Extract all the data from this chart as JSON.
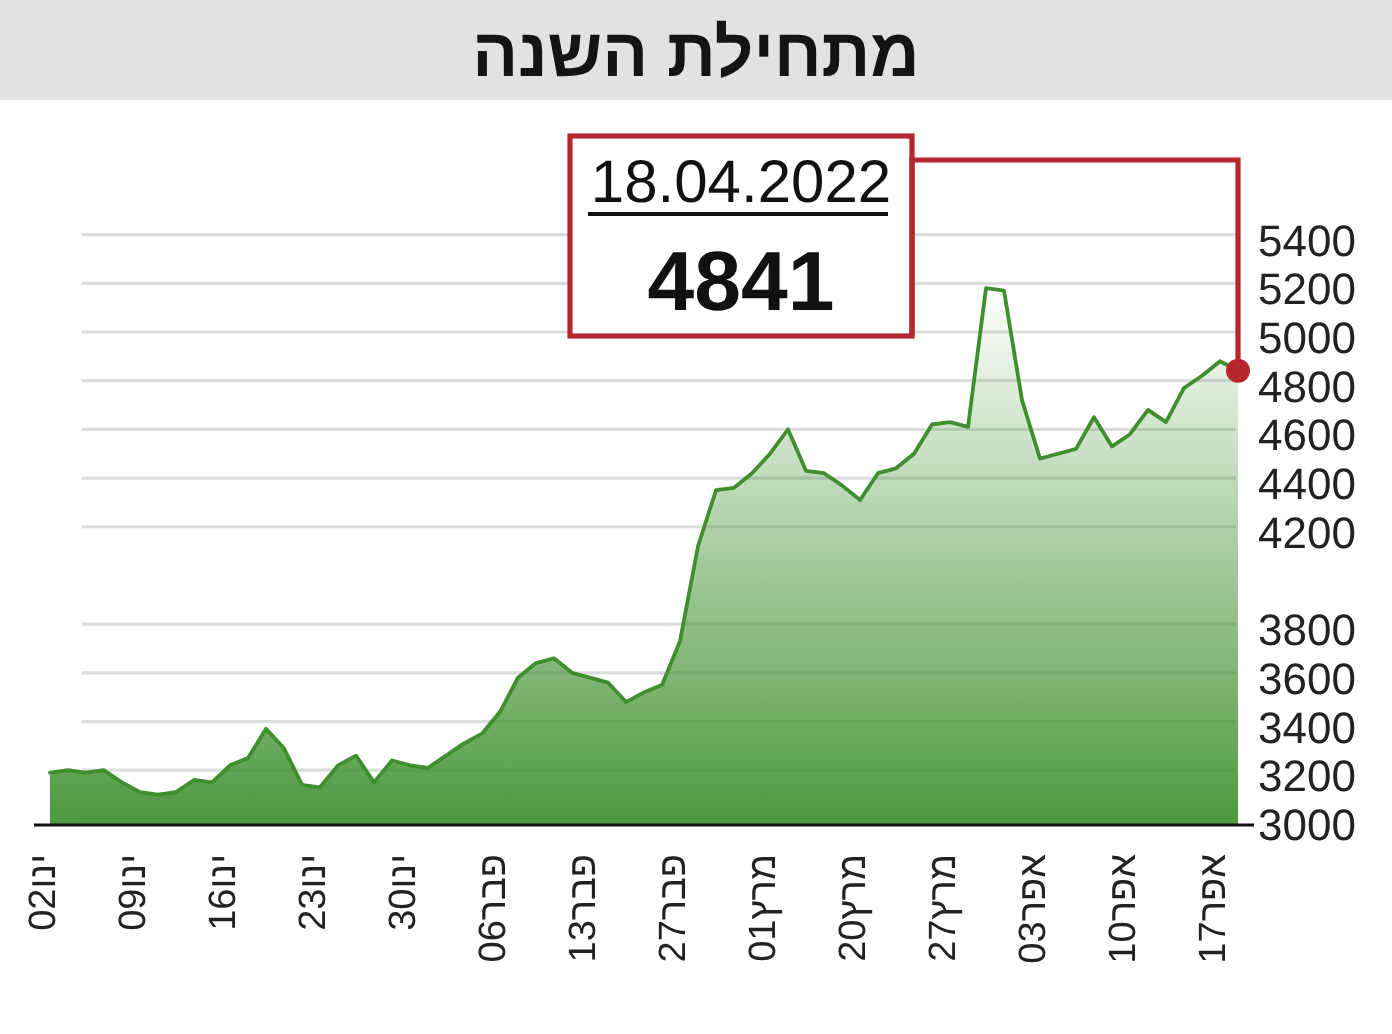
{
  "chart_data": {
    "type": "area",
    "title": "מתחילת השנה",
    "categories": [
      "02ינו",
      null,
      null,
      null,
      null,
      "09ינו",
      null,
      null,
      null,
      null,
      "16ינו",
      null,
      null,
      null,
      null,
      "23ינו",
      null,
      null,
      null,
      null,
      "30ינו",
      null,
      null,
      null,
      null,
      "06פבר",
      null,
      null,
      null,
      null,
      "13פבר",
      null,
      null,
      null,
      null,
      "27פבר",
      null,
      null,
      null,
      null,
      "01מרץ",
      null,
      null,
      null,
      null,
      "20מרץ",
      null,
      null,
      null,
      null,
      "27מרץ",
      null,
      null,
      null,
      null,
      "03אפר",
      null,
      null,
      null,
      null,
      "10אפר",
      null,
      null,
      null,
      null,
      "17אפר",
      null
    ],
    "series": [
      {
        "color": "#3f8f2e",
        "values": [
          3190,
          3200,
          3190,
          3200,
          3150,
          3110,
          3100,
          3110,
          3160,
          3150,
          3220,
          3250,
          3370,
          3290,
          3140,
          3130,
          3220,
          3260,
          3150,
          3240,
          3220,
          3210,
          3260,
          3310,
          3350,
          3440,
          3580,
          3640,
          3660,
          3600,
          3580,
          3560,
          3480,
          3520,
          3550,
          3730,
          4120,
          4350,
          4360,
          4420,
          4500,
          4600,
          4430,
          4420,
          4370,
          4310,
          4420,
          4440,
          4500,
          4620,
          4630,
          4610,
          5180,
          5170,
          4720,
          4480,
          4500,
          4520,
          4650,
          4530,
          4580,
          4680,
          4630,
          4770,
          4820,
          4880,
          4841
        ],
        "value_labels": [
          null,
          null,
          null,
          null,
          null,
          null,
          null,
          null,
          null,
          null,
          null,
          null,
          null,
          null,
          null,
          null,
          null,
          null,
          null,
          null,
          null,
          null,
          null,
          null,
          null,
          null,
          null,
          null,
          null,
          null,
          null,
          null,
          null,
          null,
          null,
          null,
          null,
          null,
          null,
          null,
          null,
          null,
          null,
          null,
          null,
          null,
          null,
          null,
          null,
          null,
          null,
          null,
          null,
          null,
          null,
          null,
          null,
          null,
          null,
          null,
          null,
          null,
          null,
          null,
          null,
          null,
          "4841"
        ]
      }
    ],
    "ylim": [
      2975,
      5400
    ],
    "yticks": [
      5400,
      5200,
      5000,
      4800,
      4600,
      4400,
      4200,
      3800,
      3600,
      3400,
      3200,
      3000
    ],
    "grid": "y",
    "annotations": [
      "18.04.2022"
    ]
  }
}
